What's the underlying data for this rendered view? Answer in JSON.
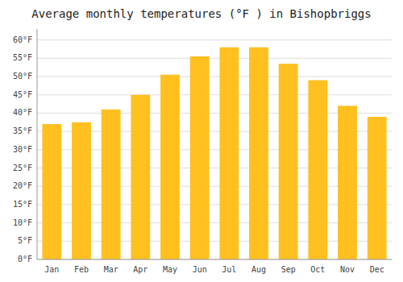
{
  "chart_data": {
    "type": "bar",
    "title": "Average monthly temperatures (°F ) in Bishopbriggs",
    "categories": [
      "Jan",
      "Feb",
      "Mar",
      "Apr",
      "May",
      "Jun",
      "Jul",
      "Aug",
      "Sep",
      "Oct",
      "Nov",
      "Dec"
    ],
    "values": [
      37,
      37.5,
      41,
      45,
      50.5,
      55.5,
      58,
      58,
      53.5,
      49,
      42,
      39
    ],
    "color": "#FFC020",
    "ylim": [
      0,
      63
    ],
    "yticks": [
      {
        "value": 0,
        "label": "0°F"
      },
      {
        "value": 5,
        "label": "5°F"
      },
      {
        "value": 10,
        "label": "10°F"
      },
      {
        "value": 15,
        "label": "15°F"
      },
      {
        "value": 20,
        "label": "20°F"
      },
      {
        "value": 25,
        "label": "25°F"
      },
      {
        "value": 30,
        "label": "30°F"
      },
      {
        "value": 35,
        "label": "35°F"
      },
      {
        "value": 40,
        "label": "40°F"
      },
      {
        "value": 45,
        "label": "45°F"
      },
      {
        "value": 50,
        "label": "50°F"
      },
      {
        "value": 55,
        "label": "55°F"
      },
      {
        "value": 60,
        "label": "60°F"
      }
    ],
    "grid": true
  }
}
